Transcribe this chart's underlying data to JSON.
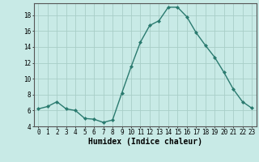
{
  "x": [
    0,
    1,
    2,
    3,
    4,
    5,
    6,
    7,
    8,
    9,
    10,
    11,
    12,
    13,
    14,
    15,
    16,
    17,
    18,
    19,
    20,
    21,
    22,
    23
  ],
  "y": [
    6.2,
    6.5,
    7.1,
    6.2,
    6.0,
    5.0,
    4.9,
    4.5,
    4.8,
    8.2,
    11.5,
    14.6,
    16.7,
    17.3,
    19.0,
    19.0,
    17.8,
    15.8,
    14.2,
    12.7,
    10.8,
    8.7,
    7.1,
    6.3
  ],
  "line_color": "#2a7a6f",
  "marker": "D",
  "marker_size": 2.0,
  "bg_color": "#c8eae6",
  "grid_color": "#a8cec8",
  "xlabel": "Humidex (Indice chaleur)",
  "ylim": [
    4,
    19.5
  ],
  "yticks": [
    4,
    6,
    8,
    10,
    12,
    14,
    16,
    18
  ],
  "xticks": [
    0,
    1,
    2,
    3,
    4,
    5,
    6,
    7,
    8,
    9,
    10,
    11,
    12,
    13,
    14,
    15,
    16,
    17,
    18,
    19,
    20,
    21,
    22,
    23
  ],
  "tick_label_fontsize": 5.5,
  "xlabel_fontsize": 7.0,
  "linewidth": 1.0
}
